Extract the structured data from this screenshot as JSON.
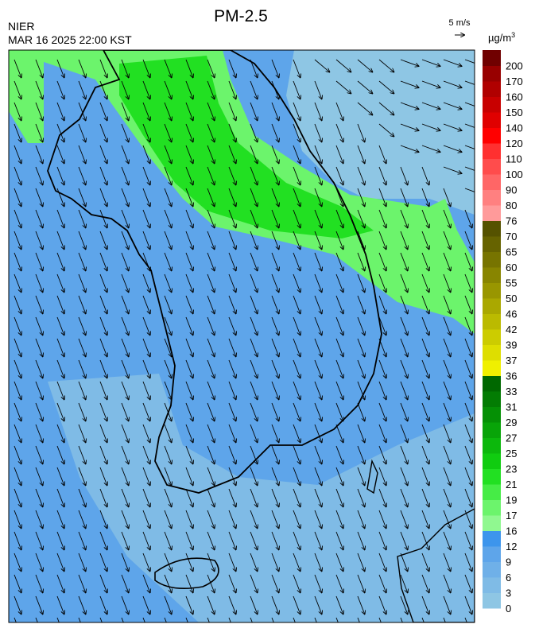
{
  "header": {
    "title": "PM-2.5",
    "agency": "NIER",
    "datetime": "MAR 16 2025 22:00 KST"
  },
  "wind_legend": {
    "label": "5 m/s"
  },
  "colorbar": {
    "unit": "µg/m",
    "unit_superscript": "3",
    "levels": [
      {
        "label": "0",
        "color": "#8ec6e4"
      },
      {
        "label": "3",
        "color": "#7fbbe6"
      },
      {
        "label": "6",
        "color": "#6fb0e8"
      },
      {
        "label": "9",
        "color": "#5ea5ea"
      },
      {
        "label": "12",
        "color": "#3d95ec"
      },
      {
        "label": "16",
        "color": "#90f890"
      },
      {
        "label": "17",
        "color": "#6cf46c"
      },
      {
        "label": "19",
        "color": "#46ec46"
      },
      {
        "label": "21",
        "color": "#22e022"
      },
      {
        "label": "23",
        "color": "#10cc10"
      },
      {
        "label": "25",
        "color": "#0cb80c"
      },
      {
        "label": "27",
        "color": "#08a408"
      },
      {
        "label": "29",
        "color": "#059005"
      },
      {
        "label": "31",
        "color": "#037c03"
      },
      {
        "label": "33",
        "color": "#006800"
      },
      {
        "label": "36",
        "color": "#f0f000"
      },
      {
        "label": "37",
        "color": "#dede00"
      },
      {
        "label": "39",
        "color": "#cccc00"
      },
      {
        "label": "42",
        "color": "#bbba00"
      },
      {
        "label": "46",
        "color": "#aaa800"
      },
      {
        "label": "50",
        "color": "#999600"
      },
      {
        "label": "55",
        "color": "#888500"
      },
      {
        "label": "60",
        "color": "#777400"
      },
      {
        "label": "65",
        "color": "#666300"
      },
      {
        "label": "70",
        "color": "#555200"
      },
      {
        "label": "76",
        "color": "#ff9a9a"
      },
      {
        "label": "80",
        "color": "#ff8080"
      },
      {
        "label": "90",
        "color": "#ff6666"
      },
      {
        "label": "100",
        "color": "#ff4c4c"
      },
      {
        "label": "110",
        "color": "#ff3030"
      },
      {
        "label": "120",
        "color": "#ff0000"
      },
      {
        "label": "140",
        "color": "#e00000"
      },
      {
        "label": "150",
        "color": "#c80000"
      },
      {
        "label": "160",
        "color": "#b00000"
      },
      {
        "label": "170",
        "color": "#980000"
      },
      {
        "label": "200",
        "color": "#700000"
      }
    ]
  }
}
